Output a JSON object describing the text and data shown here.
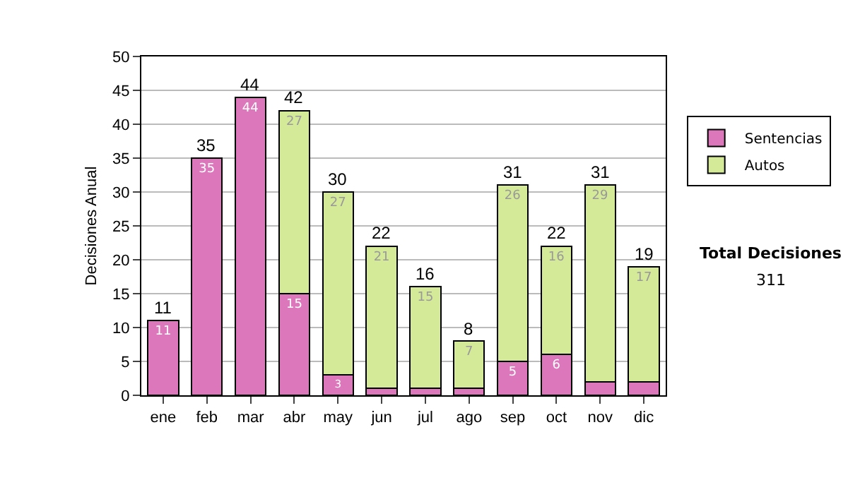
{
  "chart_data": {
    "type": "bar",
    "stacked": true,
    "ylabel": "Decisiones Anual",
    "categories": [
      "ene",
      "feb",
      "mar",
      "abr",
      "may",
      "jun",
      "jul",
      "ago",
      "sep",
      "oct",
      "nov",
      "dic"
    ],
    "series": [
      {
        "name": "Sentencias",
        "color": "#dd77bb",
        "values": [
          11,
          35,
          44,
          15,
          3,
          1,
          1,
          1,
          5,
          6,
          2,
          2
        ],
        "value_labels": [
          "11",
          "35",
          "44",
          "15",
          "3",
          null,
          null,
          null,
          "5",
          "6",
          null,
          null
        ]
      },
      {
        "name": "Autos",
        "color": "#d4ea99",
        "values": [
          null,
          null,
          null,
          27,
          27,
          21,
          15,
          7,
          26,
          16,
          29,
          17
        ],
        "value_labels": [
          null,
          null,
          null,
          "27",
          "27",
          "21",
          "15",
          "7",
          "26",
          "16",
          "29",
          "17"
        ]
      }
    ],
    "totals": [
      "11",
      "35",
      "44",
      "42",
      "30",
      "22",
      "16",
      "8",
      "31",
      "22",
      "31",
      "19"
    ],
    "ylim": [
      0,
      50
    ],
    "yticks": [
      0,
      5,
      10,
      15,
      20,
      25,
      30,
      35,
      40,
      45,
      50
    ],
    "grid": "y",
    "legend": "right",
    "annotations": [
      "Total Decisiones",
      "311"
    ]
  }
}
